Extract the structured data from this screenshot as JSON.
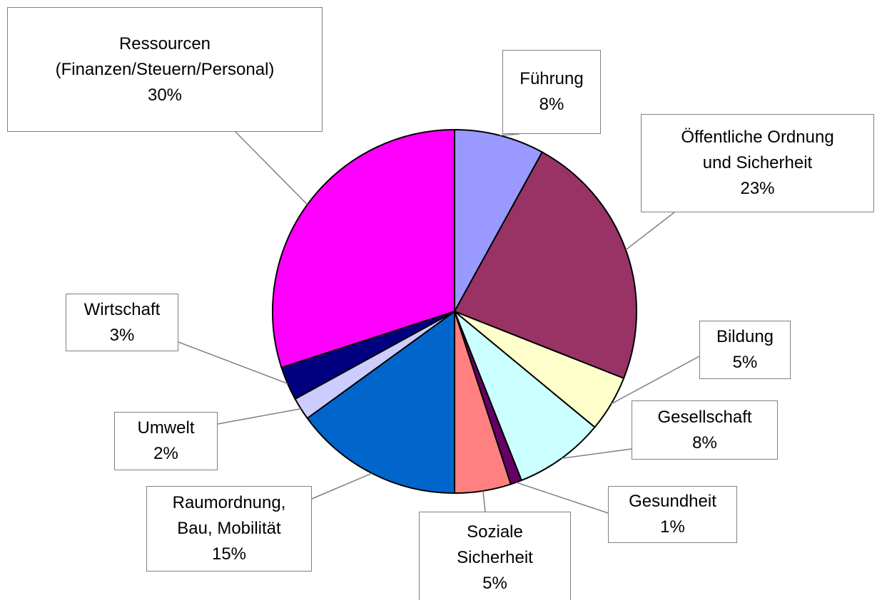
{
  "chart_data": {
    "type": "pie",
    "categories": [
      "Führung",
      "Öffentliche Ordnung\nund Sicherheit",
      "Bildung",
      "Gesellschaft",
      "Gesundheit",
      "Soziale\nSicherheit",
      "Raumordnung,\nBau, Mobilität",
      "Umwelt",
      "Wirtschaft",
      "Ressourcen\n(Finanzen/Steuern/Personal)"
    ],
    "values": [
      8,
      23,
      5,
      8,
      1,
      5,
      15,
      2,
      3,
      30
    ],
    "value_labels": [
      "8%",
      "23%",
      "5%",
      "8%",
      "1%",
      "5%",
      "15%",
      "2%",
      "3%",
      "30%"
    ],
    "colors": [
      "#9999ff",
      "#993366",
      "#ffffcc",
      "#ccffff",
      "#660066",
      "#ff8080",
      "#0066cc",
      "#ccccff",
      "#000080",
      "#ff00ff"
    ]
  }
}
